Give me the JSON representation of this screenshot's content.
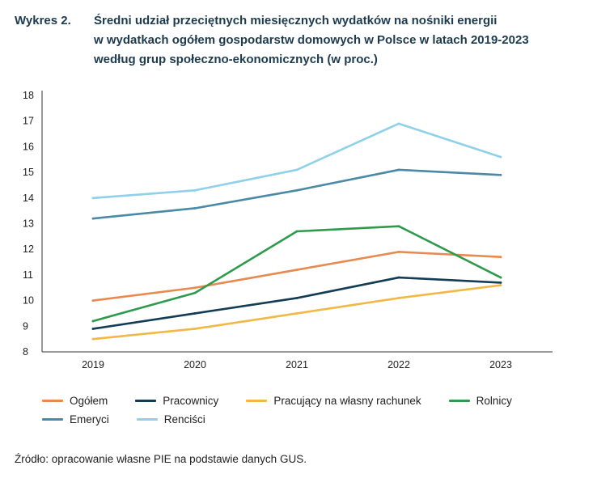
{
  "title": {
    "label": "Wykres 2.",
    "lines": [
      "Średni udział przeciętnych miesięcznych wydatków na nośniki energii",
      "w wydatkach ogółem gospodarstw domowych w Polsce w latach 2019-2023",
      "według grup społeczno-ekonomicznych (w proc.)"
    ]
  },
  "chart_data": {
    "type": "line",
    "title": "Średni udział przeciętnych miesięcznych wydatków na nośniki energii w wydatkach ogółem gospodarstw domowych w Polsce w latach 2019-2023 według grup społeczno-ekonomicznych (w proc.)",
    "x": [
      "2019",
      "2020",
      "2021",
      "2022",
      "2023"
    ],
    "xlabel": "",
    "ylabel": "",
    "ylim": [
      8,
      18
    ],
    "yticks": [
      "8",
      "9",
      "10",
      "11",
      "12",
      "13",
      "14",
      "15",
      "16",
      "17",
      "18"
    ],
    "grid": false,
    "legend_position": "bottom",
    "series": [
      {
        "name": "Ogółem",
        "color": "#e8894f",
        "values": [
          10.0,
          10.5,
          11.2,
          11.9,
          11.7
        ]
      },
      {
        "name": "Pracownicy",
        "color": "#133c55",
        "values": [
          8.9,
          9.5,
          10.1,
          10.9,
          10.7
        ]
      },
      {
        "name": "Pracujący na własny rachunek",
        "color": "#f2b845",
        "values": [
          8.5,
          8.9,
          9.5,
          10.1,
          10.6
        ]
      },
      {
        "name": "Rolnicy",
        "color": "#2e9a4c",
        "values": [
          9.2,
          10.3,
          12.7,
          12.9,
          10.9
        ]
      },
      {
        "name": "Emeryci",
        "color": "#4a8aa6",
        "values": [
          13.2,
          13.6,
          14.3,
          15.1,
          14.9
        ]
      },
      {
        "name": "Renciści",
        "color": "#8fd0ea",
        "values": [
          14.0,
          14.3,
          15.1,
          16.9,
          15.6
        ]
      }
    ]
  },
  "source": "Źródło: opracowanie własne PIE na podstawie danych GUS."
}
